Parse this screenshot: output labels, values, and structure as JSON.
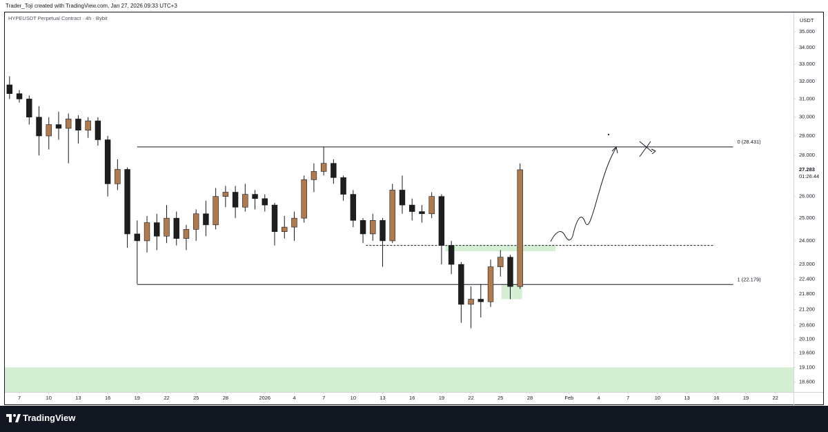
{
  "attribution": "Trader_Toji created with TradingView.com, Jan 27, 2026 09:33 UTC+3",
  "footer_brand": "TradingView",
  "chart_data": {
    "type": "candlestick",
    "title": "HYPEUSDT Perpetual Contract · 4h · Bybit",
    "y_unit": "USDT",
    "log_scale": true,
    "grid": false,
    "up_color": "#b07a4f",
    "down_color": "#1e1e1e",
    "xlim": [
      -1.48,
      78.85
    ],
    "ylim": [
      18.27,
      36.24
    ],
    "xticks": [
      {
        "value": 0,
        "label": "7"
      },
      {
        "value": 3,
        "label": "10"
      },
      {
        "value": 6,
        "label": "13"
      },
      {
        "value": 9,
        "label": "16"
      },
      {
        "value": 12,
        "label": "19"
      },
      {
        "value": 15,
        "label": "22"
      },
      {
        "value": 18,
        "label": "25"
      },
      {
        "value": 21,
        "label": "28"
      },
      {
        "value": 25,
        "label": "2026"
      },
      {
        "value": 28,
        "label": "4"
      },
      {
        "value": 31,
        "label": "7"
      },
      {
        "value": 34,
        "label": "10"
      },
      {
        "value": 37,
        "label": "13"
      },
      {
        "value": 40,
        "label": "16"
      },
      {
        "value": 43,
        "label": "19"
      },
      {
        "value": 46,
        "label": "22"
      },
      {
        "value": 49,
        "label": "25"
      },
      {
        "value": 52,
        "label": "28"
      },
      {
        "value": 56,
        "label": "Feb"
      },
      {
        "value": 59,
        "label": "4"
      },
      {
        "value": 62,
        "label": "7"
      },
      {
        "value": 65,
        "label": "10"
      },
      {
        "value": 68,
        "label": "13"
      },
      {
        "value": 71,
        "label": "16"
      },
      {
        "value": 74,
        "label": "19"
      },
      {
        "value": 77,
        "label": "22"
      }
    ],
    "yticks": [
      {
        "value": 35,
        "label": "35.000"
      },
      {
        "value": 34,
        "label": "34.000"
      },
      {
        "value": 33,
        "label": "33.000"
      },
      {
        "value": 32,
        "label": "32.000"
      },
      {
        "value": 31,
        "label": "31.000"
      },
      {
        "value": 30,
        "label": "30.000"
      },
      {
        "value": 29,
        "label": "29.000"
      },
      {
        "value": 28,
        "label": "28.000"
      },
      {
        "value": 26,
        "label": "26.000"
      },
      {
        "value": 25,
        "label": "25.000"
      },
      {
        "value": 24,
        "label": "24.000"
      },
      {
        "value": 23,
        "label": "23.000"
      },
      {
        "value": 22.4,
        "label": "22.400"
      },
      {
        "value": 21.8,
        "label": "21.800"
      },
      {
        "value": 21.2,
        "label": "21.200"
      },
      {
        "value": 20.6,
        "label": "20.600"
      },
      {
        "value": 20.1,
        "label": "20.100"
      },
      {
        "value": 19.6,
        "label": "19.600"
      },
      {
        "value": 19.1,
        "label": "19.100"
      },
      {
        "value": 18.6,
        "label": "18.600"
      }
    ],
    "x": [
      -1,
      0,
      1,
      2,
      3,
      4,
      5,
      6,
      7,
      8,
      9,
      10,
      11,
      12,
      13,
      14,
      15,
      16,
      17,
      18,
      19,
      20,
      21,
      22,
      23,
      24,
      25,
      26,
      27,
      28,
      29,
      30,
      31,
      32,
      33,
      34,
      35,
      36,
      37,
      38,
      39,
      40,
      41,
      42,
      43,
      44,
      45,
      46,
      47,
      48,
      49,
      50,
      51
    ],
    "open": [
      31.8,
      31.3,
      31.0,
      30.0,
      29.0,
      29.6,
      29.4,
      29.9,
      29.3,
      29.8,
      28.8,
      26.6,
      27.3,
      24.3,
      24.0,
      24.8,
      24.2,
      25.0,
      24.1,
      24.5,
      25.2,
      24.7,
      26.0,
      26.2,
      25.5,
      26.1,
      25.9,
      25.6,
      24.4,
      24.6,
      25.0,
      26.8,
      27.2,
      27.6,
      26.9,
      26.1,
      24.9,
      24.3,
      24.9,
      24.0,
      26.3,
      25.6,
      25.3,
      25.2,
      26.0,
      23.8,
      23.0,
      21.4,
      21.6,
      21.5,
      22.9,
      23.3,
      22.1
    ],
    "high": [
      32.3,
      31.5,
      31.2,
      30.6,
      30.0,
      30.3,
      30.2,
      30.1,
      30.0,
      30.0,
      29.0,
      27.8,
      27.4,
      24.9,
      25.1,
      25.2,
      25.6,
      25.3,
      24.7,
      25.4,
      25.8,
      26.4,
      26.5,
      26.5,
      26.6,
      26.3,
      26.1,
      25.7,
      25.1,
      25.3,
      27.0,
      27.6,
      28.43,
      27.8,
      27.0,
      26.3,
      25.0,
      25.2,
      25.0,
      26.6,
      27.0,
      25.9,
      25.6,
      26.2,
      26.1,
      24.0,
      23.1,
      22.1,
      22.2,
      23.2,
      23.6,
      23.4,
      27.6
    ],
    "low": [
      31.0,
      30.8,
      29.6,
      28.0,
      28.3,
      28.8,
      27.6,
      28.6,
      28.9,
      28.5,
      26.0,
      26.3,
      23.7,
      22.2,
      23.5,
      23.6,
      23.9,
      23.8,
      23.6,
      24.0,
      24.2,
      24.5,
      25.5,
      25.0,
      25.3,
      25.4,
      25.3,
      23.8,
      24.1,
      24.0,
      24.8,
      26.2,
      27.0,
      26.6,
      25.8,
      24.6,
      23.9,
      24.0,
      22.9,
      23.9,
      25.2,
      24.9,
      24.8,
      25.0,
      23.0,
      22.6,
      20.7,
      20.5,
      20.9,
      21.3,
      22.5,
      21.6,
      22.0
    ],
    "close": [
      31.3,
      31.0,
      30.0,
      29.0,
      29.6,
      29.4,
      29.9,
      29.3,
      29.8,
      28.8,
      26.6,
      27.3,
      24.3,
      24.0,
      24.8,
      24.2,
      25.0,
      24.1,
      24.5,
      25.2,
      24.7,
      26.0,
      26.2,
      25.5,
      26.1,
      25.9,
      25.6,
      24.4,
      24.6,
      25.0,
      26.8,
      27.2,
      27.6,
      26.9,
      26.1,
      24.9,
      24.3,
      24.9,
      24.0,
      26.3,
      25.6,
      25.3,
      25.2,
      26.0,
      23.8,
      23.0,
      21.4,
      21.6,
      21.5,
      22.9,
      23.3,
      22.1,
      27.283
    ],
    "countdown": "01:26:44",
    "levels": [
      {
        "value": 28.431,
        "label": "0 (28.431)",
        "x": [
          12.0,
          72.7
        ]
      },
      {
        "value": 22.179,
        "label": "1 (22.179)",
        "x": [
          12.0,
          72.7
        ]
      }
    ],
    "dashed_level": {
      "value": 23.8,
      "x": [
        35.3,
        70.8
      ]
    },
    "zones": [
      {
        "from": 23.55,
        "to": 23.8,
        "x": [
          43.4,
          54.6
        ]
      },
      {
        "from": 21.6,
        "to": 22.2,
        "x": [
          49.1,
          51.2
        ]
      },
      {
        "from": 18.27,
        "to": 19.1,
        "x": [
          -1.48,
          78.85
        ]
      }
    ],
    "zone_color": "#cdeccd"
  }
}
